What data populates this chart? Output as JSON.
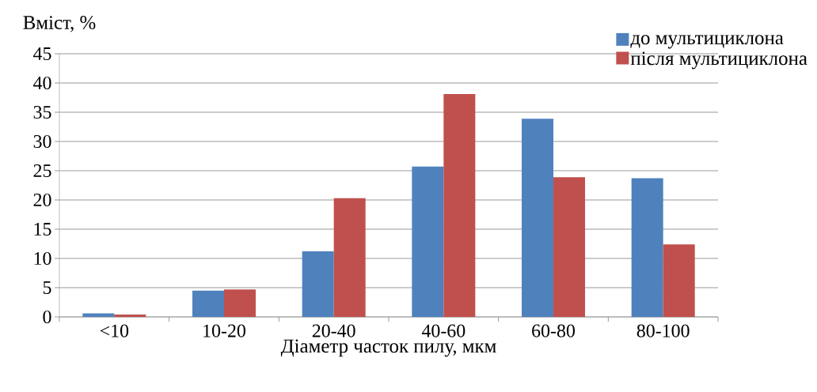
{
  "chart_data": {
    "type": "bar",
    "xlabel": "Діаметр часток пилу, мкм",
    "ylabel": "Вміст, %",
    "categories": [
      "<10",
      "10-20",
      "20-40",
      "40-60",
      "60-80",
      "80-100"
    ],
    "series": [
      {
        "name": "до мультициклона",
        "color": "#4f81bd",
        "values": [
          0.6,
          4.5,
          11.2,
          25.7,
          33.9,
          23.7
        ]
      },
      {
        "name": "після мультициклона",
        "color": "#c0504d",
        "values": [
          0.4,
          4.7,
          20.3,
          38.1,
          23.9,
          12.4
        ]
      }
    ],
    "ylim": [
      0,
      45
    ],
    "yticks": [
      0,
      5,
      10,
      15,
      20,
      25,
      30,
      35,
      40,
      45
    ],
    "grid": "y",
    "legend": "top right"
  }
}
